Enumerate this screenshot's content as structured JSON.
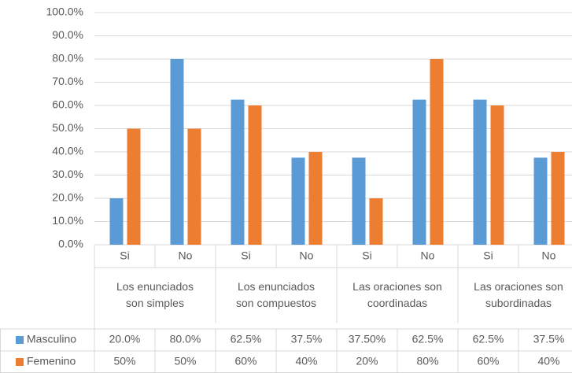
{
  "chart_data": {
    "type": "bar",
    "categories": [
      "Si",
      "No",
      "Si",
      "No",
      "Si",
      "No",
      "Si",
      "No"
    ],
    "groups": [
      "Los enunciados son simples",
      "Los enunciados son compuestos",
      "Las oraciones son coordinadas",
      "Las oraciones son subordinadas"
    ],
    "series": [
      {
        "name": "Masculino",
        "color": "#5b9bd5",
        "values": [
          20,
          80,
          62.5,
          37.5,
          37.5,
          62.5,
          62.5,
          37.5
        ],
        "value_labels": [
          "20.0%",
          "80.0%",
          "62.5%",
          "37.5%",
          "37.50%",
          "62.5%",
          "62.5%",
          "37.5%"
        ]
      },
      {
        "name": "Femenino",
        "color": "#ed7d31",
        "values": [
          50,
          50,
          60,
          40,
          20,
          80,
          60,
          40
        ],
        "value_labels": [
          "50%",
          "50%",
          "60%",
          "40%",
          "20%",
          "80%",
          "60%",
          "40%"
        ]
      }
    ],
    "ylim": [
      0,
      100
    ],
    "yticks": [
      {
        "value": 0,
        "label": "0.0%"
      },
      {
        "value": 10,
        "label": "10.0%"
      },
      {
        "value": 20,
        "label": "20.0%"
      },
      {
        "value": 30,
        "label": "30.0%"
      },
      {
        "value": 40,
        "label": "40.0%"
      },
      {
        "value": 50,
        "label": "50.0%"
      },
      {
        "value": 60,
        "label": "60.0%"
      },
      {
        "value": 70,
        "label": "70.0%"
      },
      {
        "value": 80,
        "label": "80.0%"
      },
      {
        "value": 90,
        "label": "90.0%"
      },
      {
        "value": 100,
        "label": "100.0%"
      }
    ],
    "grid": true
  }
}
